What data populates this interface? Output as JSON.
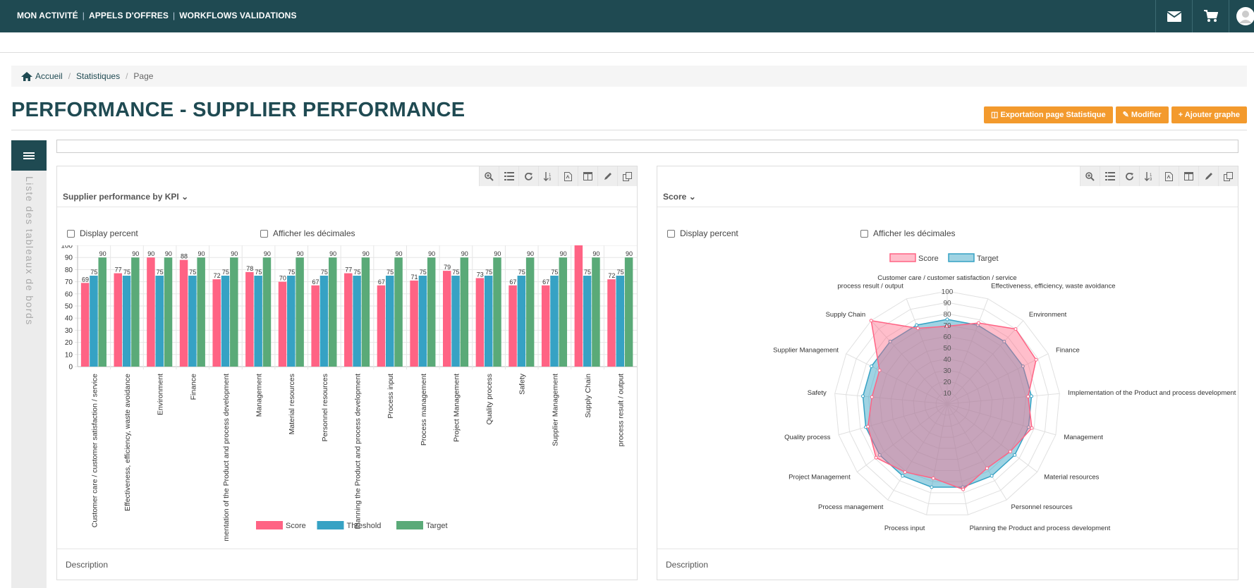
{
  "topnav": {
    "items": [
      "MON ACTIVITÉ",
      "APPELS D'OFFRES",
      "WORKFLOWS VALIDATIONS"
    ]
  },
  "topicons": [
    "envelope-icon",
    "cart-icon",
    "user-icon"
  ],
  "breadcrumb": {
    "home": "Accueil",
    "section": "Statistiques",
    "current": "Page"
  },
  "page_title": "PERFORMANCE - SUPPLIER PERFORMANCE",
  "actions": {
    "export": "Exportation page Statistique",
    "edit": "Modifier",
    "add": "Ajouter graphe"
  },
  "sidebar": {
    "label": "Liste des tableaux de bords"
  },
  "colors": {
    "score": "#ff6384",
    "threshold": "#36a2c4",
    "target": "#5aaa78",
    "brand": "#1f4a52",
    "accent": "#f39a2d"
  },
  "panels": [
    {
      "title": "Supplier performance by KPI",
      "display_percent": "Display percent",
      "decimals": "Afficher les décimales",
      "description": "Description"
    },
    {
      "title": "Score",
      "display_percent": "Display percent",
      "decimals": "Afficher les décimales",
      "description": "Description"
    }
  ],
  "chart_data": [
    {
      "type": "bar",
      "title": "Supplier performance by KPI",
      "categories": [
        "Customer care / customer satisfaction / service",
        "Effectiveness, efficiency, waste avoidance",
        "Environment",
        "Finance",
        "Implementation of the Product and process development",
        "Management",
        "Material resources",
        "Personnel resources",
        "Planning the Product and process development",
        "Process input",
        "Process management",
        "Project Management",
        "Quality process",
        "Safety",
        "Supplier Management",
        "Supply Chain",
        "process result / output"
      ],
      "series": [
        {
          "name": "Score",
          "values": [
            69,
            77,
            90,
            88,
            72,
            78,
            70,
            67,
            77,
            67,
            71,
            79,
            73,
            67,
            67,
            100,
            72
          ]
        },
        {
          "name": "Threshold",
          "values": [
            75,
            75,
            75,
            75,
            75,
            75,
            75,
            75,
            75,
            75,
            75,
            75,
            75,
            75,
            75,
            75,
            75
          ]
        },
        {
          "name": "Target",
          "values": [
            90,
            90,
            90,
            90,
            90,
            90,
            90,
            90,
            90,
            90,
            90,
            90,
            90,
            90,
            90,
            90,
            90
          ]
        }
      ],
      "ylim": [
        0,
        100
      ],
      "yticks": [
        0,
        10,
        20,
        30,
        40,
        50,
        60,
        70,
        80,
        90,
        100
      ],
      "legend": "bottom"
    },
    {
      "type": "radar",
      "title": "Score",
      "categories": [
        "Customer care / customer satisfaction / service",
        "Effectiveness, efficiency, waste avoidance",
        "Environment",
        "Finance",
        "Implementation of the Product and process development",
        "Management",
        "Material resources",
        "Personnel resources",
        "Planning the Product and process development",
        "Process input",
        "Process management",
        "Project Management",
        "Quality process",
        "Safety",
        "Supplier Management",
        "Supply Chain",
        "process result / output"
      ],
      "series": [
        {
          "name": "Score",
          "values": [
            69,
            77,
            90,
            88,
            72,
            78,
            70,
            67,
            77,
            67,
            71,
            79,
            73,
            67,
            67,
            100,
            72
          ]
        },
        {
          "name": "Target",
          "values": [
            75,
            75,
            75,
            75,
            75,
            75,
            75,
            75,
            75,
            75,
            75,
            75,
            75,
            75,
            75,
            75,
            75
          ]
        }
      ],
      "rlim": [
        0,
        100
      ],
      "rticks": [
        10,
        20,
        30,
        40,
        50,
        60,
        70,
        80,
        90,
        100
      ],
      "legend": "top"
    }
  ]
}
